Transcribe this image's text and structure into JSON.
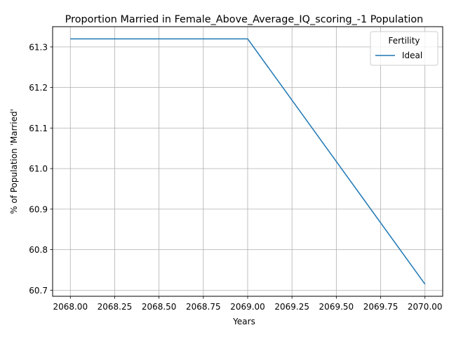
{
  "chart_data": {
    "type": "line",
    "title": "Proportion Married in Female_Above_Average_IQ_scoring_-1 Population",
    "xlabel": "Years",
    "ylabel": "% of Population 'Married'",
    "xlim": [
      2067.9,
      2070.1
    ],
    "ylim": [
      60.685,
      61.35
    ],
    "xticks": [
      "2068.00",
      "2068.25",
      "2068.50",
      "2068.75",
      "2069.00",
      "2069.25",
      "2069.50",
      "2069.75",
      "2070.00"
    ],
    "yticks": [
      "60.7",
      "60.8",
      "60.9",
      "61.0",
      "61.1",
      "61.2",
      "61.3"
    ],
    "grid": true,
    "legend": {
      "title": "Fertility",
      "placement": "top-right"
    },
    "series": [
      {
        "name": "Ideal",
        "color": "#1f77b4",
        "x": [
          2068,
          2069,
          2070
        ],
        "y": [
          61.32,
          61.32,
          60.715
        ]
      }
    ]
  }
}
